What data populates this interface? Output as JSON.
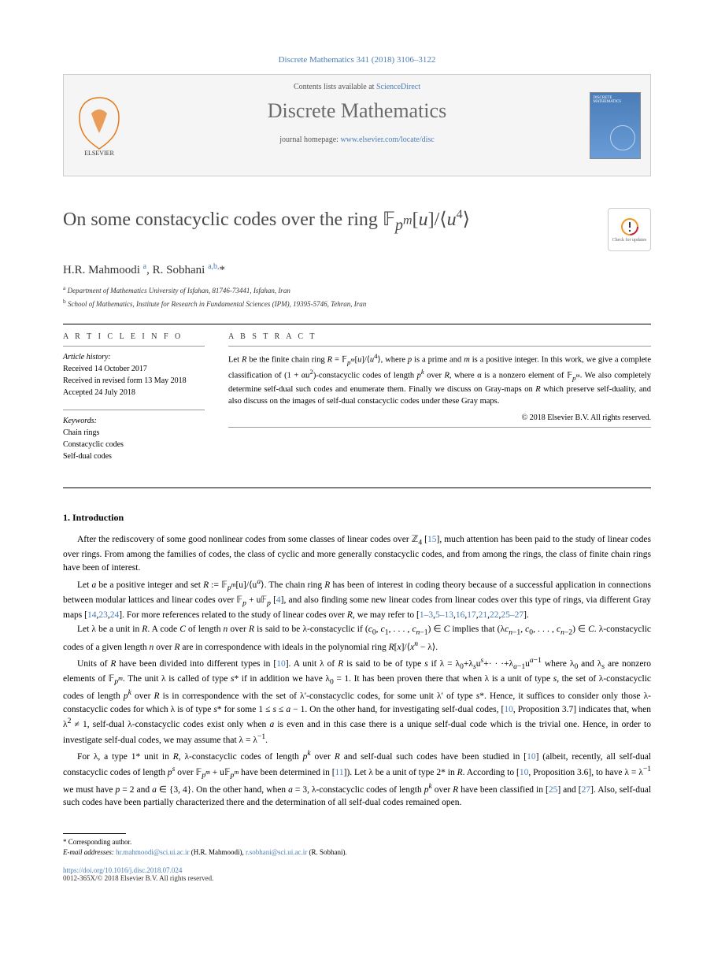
{
  "citation": "Discrete Mathematics 341 (2018) 3106–3122",
  "header": {
    "contents_prefix": "Contents lists available at ",
    "contents_link": "ScienceDirect",
    "journal_name": "Discrete Mathematics",
    "homepage_prefix": "journal homepage: ",
    "homepage_link": "www.elsevier.com/locate/disc",
    "cover_label": "DISCRETE MATHEMATICS"
  },
  "title_html": "On some constacyclic codes over the ring 𝔽<sub><i>p</i><sup><i>m</i></sup></sub>[<i>u</i>]/⟨<i>u</i><sup>4</sup>⟩",
  "updates_badge": "Check for updates",
  "authors_html": "H.R. Mahmoodi <sup>a</sup>, R. Sobhani <sup>a,b,</sup>*",
  "affiliations": [
    {
      "sup": "a",
      "text": "Department of Mathematics University of Isfahan, 81746-73441, Isfahan, Iran"
    },
    {
      "sup": "b",
      "text": "School of Mathematics, Institute for Research in Fundamental Sciences (IPM), 19395-5746, Tehran, Iran"
    }
  ],
  "info": {
    "heading_info": "A R T I C L E   I N F O",
    "heading_abstract": "A B S T R A C T",
    "history_label": "Article history:",
    "history": [
      "Received 14 October 2017",
      "Received in revised form 13 May 2018",
      "Accepted 24 July 2018"
    ],
    "keywords_label": "Keywords:",
    "keywords": [
      "Chain rings",
      "Constacyclic codes",
      "Self-dual codes"
    ]
  },
  "abstract_html": "Let <i>R</i> be the finite chain ring <i>R</i> = 𝔽<sub><i>p</i><sup><i>m</i></sup></sub>[<i>u</i>]/⟨<i>u</i><sup>4</sup>⟩, where <i>p</i> is a prime and <i>m</i> is a positive integer. In this work, we give a complete classification of (1 + α<i>u</i><sup>2</sup>)-constacyclic codes of length <i>p</i><sup><i>k</i></sup> over <i>R</i>, where α is a nonzero element of 𝔽<sub><i>p</i><sup><i>m</i></sup></sub>. We also completely determine self-dual such codes and enumerate them. Finally we discuss on Gray-maps on <i>R</i> which preserve self-duality, and also discuss on the images of self-dual constacyclic codes under these Gray maps.",
  "abstract_copyright": "© 2018 Elsevier B.V. All rights reserved.",
  "section1": {
    "heading": "1. Introduction",
    "paras_html": [
      "After the rediscovery of some good nonlinear codes from some classes of linear codes over ℤ<sub>4</sub> [<span class='ref'>15</span>], much attention has been paid to the study of linear codes over rings. From among the families of codes, the class of cyclic and more generally constacyclic codes, and from among the rings, the class of finite chain rings have been of interest.",
      "Let <i>a</i> be a positive integer and set <i>R</i> := 𝔽<sub><i>p</i><sup><i>m</i></sup></sub>[u]/⟨u<sup><i>a</i></sup>⟩. The chain ring <i>R</i> has been of interest in coding theory because of a successful application in connections between modular lattices and linear codes over 𝔽<sub><i>p</i></sub> + u𝔽<sub><i>p</i></sub> [<span class='ref'>4</span>], and also finding some new linear codes from linear codes over this type of rings, via different Gray maps [<span class='ref'>14</span>,<span class='ref'>23</span>,<span class='ref'>24</span>]. For more references related to the study of linear codes over <i>R</i>, we may refer to [<span class='ref'>1–3</span>,<span class='ref'>5–13</span>,<span class='ref'>16</span>,<span class='ref'>17</span>,<span class='ref'>21</span>,<span class='ref'>22</span>,<span class='ref'>25–27</span>].",
      "Let λ be a unit in <i>R</i>. A code <i>C</i> of length <i>n</i> over <i>R</i> is said to be λ-constacyclic if (<i>c</i><sub>0</sub>, <i>c</i><sub>1</sub>, . . . , <i>c</i><sub><i>n</i>−1</sub>) ∈ <i>C</i> implies that (λ<i>c</i><sub><i>n</i>−1</sub>, <i>c</i><sub>0</sub>, . . . , <i>c</i><sub><i>n</i>−2</sub>) ∈ <i>C</i>. λ-constacyclic codes of a given length <i>n</i> over <i>R</i> are in correspondence with ideals in the polynomial ring <i>R</i>[<i>x</i>]/⟨<i>x</i><sup><i>n</i></sup> − λ⟩.",
      "Units of <i>R</i> have been divided into different types in [<span class='ref'>10</span>]. A unit λ of <i>R</i> is said to be of type <i>s</i> if λ = λ<sub>0</sub>+λ<sub><i>s</i></sub>u<sup><i>s</i></sup>+· · ·+λ<sub><i>a</i>−1</sub>u<sup><i>a</i>−1</sup> where λ<sub>0</sub> and λ<sub><i>s</i></sub> are nonzero elements of 𝔽<sub><i>p</i><sup><i>m</i></sup></sub>. The unit λ is called of type <i>s</i>* if in addition we have λ<sub>0</sub> = 1. It has been proven there that when λ is a unit of type <i>s</i>, the set of λ-constacyclic codes of length <i>p</i><sup><i>k</i></sup> over <i>R</i> is in correspondence with the set of λ′-constacyclic codes, for some unit λ′ of type <i>s</i>*. Hence, it suffices to consider only those λ-constacyclic codes for which λ is of type <i>s</i>* for some 1 ≤ <i>s</i> ≤ <i>a</i> − 1. On the other hand, for investigating self-dual codes, [<span class='ref'>10</span>, Proposition 3.7] indicates that, when λ<sup>2</sup> ≠ 1, self-dual λ-constacyclic codes exist only when <i>a</i> is even and in this case there is a unique self-dual code which is the trivial one. Hence, in order to investigate self-dual codes, we may assume that λ = λ<sup>−1</sup>.",
      "For λ, a type 1* unit in <i>R</i>, λ-constacyclic codes of length <i>p</i><sup><i>k</i></sup> over <i>R</i> and self-dual such codes have been studied in [<span class='ref'>10</span>] (albeit, recently, all self-dual constacyclic codes of length <i>p</i><sup><i>s</i></sup> over 𝔽<sub><i>p</i><sup><i>m</i></sup></sub> + u𝔽<sub><i>p</i><sup><i>m</i></sup></sub> have been determined in [<span class='ref'>11</span>]). Let λ be a unit of type 2* in <i>R</i>. According to [<span class='ref'>10</span>, Proposition 3.6], to have λ = λ<sup>−1</sup> we must have <i>p</i> = 2 and <i>a</i> ∈ {3, 4}. On the other hand, when <i>a</i> = 3, λ-constacyclic codes of length <i>p</i><sup><i>k</i></sup> over <i>R</i> have been classified in [<span class='ref'>25</span>] and [<span class='ref'>27</span>]. Also, self-dual such codes have been partially characterized there and the determination of all self-dual codes remained open."
    ]
  },
  "footnotes": {
    "corresp_label": "* Corresponding author.",
    "email_label": "E-mail addresses:",
    "emails": [
      {
        "addr": "hr.mahmoodi@sci.ui.ac.ir",
        "name": "(H.R. Mahmoodi)"
      },
      {
        "addr": "r.sobhani@sci.ui.ac.ir",
        "name": "(R. Sobhani)"
      }
    ]
  },
  "doi": "https://doi.org/10.1016/j.disc.2018.07.024",
  "bottom_copyright": "0012-365X/© 2018 Elsevier B.V. All rights reserved.",
  "colors": {
    "link": "#4a7db8",
    "text": "#000000",
    "gray_text": "#555555",
    "header_bg": "#f5f5f5",
    "border": "#cccccc"
  }
}
